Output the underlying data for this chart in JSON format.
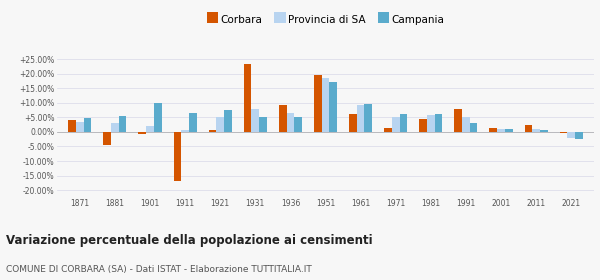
{
  "years": [
    1871,
    1881,
    1901,
    1911,
    1921,
    1931,
    1936,
    1951,
    1961,
    1971,
    1981,
    1991,
    2001,
    2011,
    2021
  ],
  "corbara": [
    4.2,
    -4.5,
    -0.8,
    -17.0,
    0.8,
    23.5,
    9.2,
    19.5,
    6.0,
    1.2,
    4.3,
    7.8,
    1.2,
    2.5,
    -0.5
  ],
  "provincia_sa": [
    3.5,
    3.0,
    2.0,
    0.5,
    5.0,
    8.0,
    6.5,
    18.5,
    9.2,
    5.0,
    5.8,
    5.0,
    1.0,
    1.0,
    -2.0
  ],
  "campania": [
    4.8,
    5.5,
    9.8,
    6.5,
    7.5,
    5.0,
    5.2,
    17.2,
    9.7,
    6.2,
    6.0,
    3.0,
    1.0,
    0.8,
    -2.5
  ],
  "color_corbara": "#d45500",
  "color_provincia": "#b8d4f0",
  "color_campania": "#5aabcc",
  "title": "Variazione percentuale della popolazione ai censimenti",
  "subtitle": "COMUNE DI CORBARA (SA) - Dati ISTAT - Elaborazione TUTTITALIA.IT",
  "yticks": [
    -20,
    -15,
    -10,
    -5,
    0,
    5,
    10,
    15,
    20,
    25
  ],
  "ylim": [
    -22,
    28
  ],
  "background": "#f7f7f7",
  "bar_width": 0.22
}
